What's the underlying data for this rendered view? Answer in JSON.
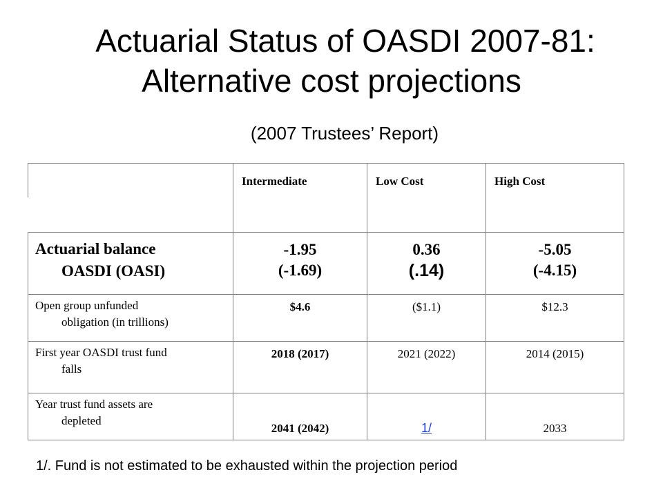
{
  "title": {
    "line1": "Actuarial Status of OASDI 2007-81:",
    "line2": "Alternative cost projections"
  },
  "subtitle": "(2007 Trustees’ Report)",
  "table": {
    "headers": [
      "Intermediate",
      "Low Cost",
      "High Cost"
    ],
    "rows": [
      {
        "label_line1": "Actuarial balance",
        "label_line2": "OASDI (OASI)",
        "values": [
          {
            "main": "-1.95",
            "sub": "(-1.69)"
          },
          {
            "main": "0.36",
            "sub": "(.14)"
          },
          {
            "main": "-5.05",
            "sub": "(-4.15)"
          }
        ]
      },
      {
        "label_line1": "Open group unfunded",
        "label_line2": "obligation (in trillions)",
        "values": [
          "$4.6",
          "($1.1)",
          "$12.3"
        ]
      },
      {
        "label_line1": "First year OASDI trust fund",
        "label_line2": "falls",
        "values": [
          "2018 (2017)",
          "2021 (2022)",
          "2014 (2015)"
        ]
      },
      {
        "label_line1": "Year trust fund assets are",
        "label_line2": "depleted",
        "values": [
          "2041 (2042)",
          "1/",
          "2033"
        ]
      }
    ]
  },
  "footnote": "1/. Fund is not estimated to be exhausted within the projection period",
  "colors": {
    "text": "#000000",
    "link": "#1f3fd0",
    "border": "#7f7f7f"
  }
}
